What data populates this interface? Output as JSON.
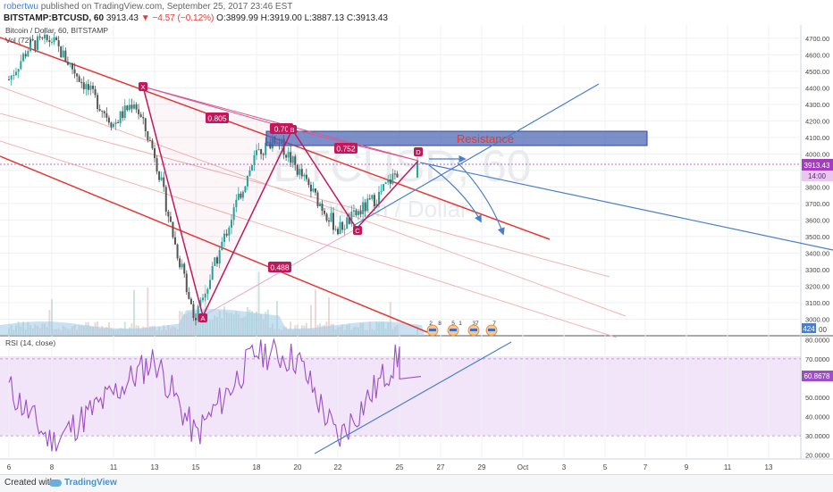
{
  "header": {
    "author": "robertwu",
    "published_text": "published on TradingView.com, September 25, 2017 23:46 EST",
    "symbol_line": "BITSTAMP:BTCUSD, 60",
    "last": "3913.43",
    "change": "▼ −4.57 (−0.12%)",
    "ohlc": "O:3899.99 H:3919.00 L:3887.13 C:3913.43"
  },
  "legend": {
    "main": "Bitcoin / Dollar, 60, BITSTAMP",
    "vol": "Vol (72)",
    "rsi": "RSI (14, close)"
  },
  "watermark": {
    "symbol": "BTCUSD, 60",
    "name": "Bitcoin / Dollar"
  },
  "price_axis": {
    "ticks": [
      "4700.00",
      "4600.00",
      "4500.00",
      "4400.00",
      "4300.00",
      "4200.00",
      "4100.00",
      "4000.00",
      "3900.00",
      "3800.00",
      "3700.00",
      "3600.00",
      "3500.00",
      "3400.00",
      "3300.00",
      "3200.00",
      "3100.00",
      "3000.00"
    ],
    "last_price_label": "3913.43",
    "countdown_label": "14:00",
    "volume_label": "424",
    "bottom_partial": "00"
  },
  "rsi_axis": {
    "ticks": [
      "80.0000",
      "70.0000",
      "50.0000",
      "40.0000",
      "30.0000",
      "20.0000"
    ],
    "current_label": "60.8678"
  },
  "time_axis": {
    "labels": [
      "6",
      "8",
      "11",
      "13",
      "15",
      "18",
      "20",
      "22",
      "25",
      "27",
      "29",
      "Oct",
      "3",
      "5",
      "7",
      "9",
      "11",
      "13"
    ]
  },
  "annotations": {
    "resistance": "Resistance",
    "pattern_points": [
      "X",
      "A",
      "B",
      "C",
      "D"
    ],
    "ratios": [
      "0.805",
      "0.70",
      "0.752",
      "0.488"
    ],
    "event_badges": [
      "2",
      "8",
      "5",
      "1",
      "37",
      "7"
    ]
  },
  "chart_data": {
    "type": "line",
    "xlabel": "",
    "ylabel": "",
    "x_ticks": [
      "6",
      "8",
      "11",
      "13",
      "15",
      "18",
      "20",
      "22",
      "25",
      "27",
      "29",
      "Oct",
      "3",
      "5",
      "7",
      "9",
      "11",
      "13"
    ],
    "ylim": [
      2900,
      4780
    ],
    "rsi_ylim": [
      18,
      82
    ],
    "series": [
      {
        "name": "BITSTAMP:BTCUSD, 60",
        "type": "candlestick",
        "key_points": [
          {
            "x": "6",
            "y": 4450
          },
          {
            "x": "7",
            "y": 4660
          },
          {
            "x": "8",
            "y": 4690
          },
          {
            "x": "11",
            "y": 4180
          },
          {
            "x": "12",
            "y": 4320
          },
          {
            "x": "13",
            "y": 4000
          },
          {
            "x": "14",
            "y": 3450
          },
          {
            "x": "15",
            "y": 3000
          },
          {
            "x": "17",
            "y": 3700
          },
          {
            "x": "18",
            "y": 4000
          },
          {
            "x": "19",
            "y": 4090
          },
          {
            "x": "21",
            "y": 3720
          },
          {
            "x": "22",
            "y": 3540
          },
          {
            "x": "24",
            "y": 3750
          },
          {
            "x": "25",
            "y": 3913.43
          }
        ]
      },
      {
        "name": "Vol (72)",
        "type": "volume"
      },
      {
        "name": "RSI (14, close)",
        "type": "oscillator",
        "key_points": [
          {
            "x": "6",
            "y": 55
          },
          {
            "x": "8",
            "y": 26
          },
          {
            "x": "11",
            "y": 52
          },
          {
            "x": "13",
            "y": 70
          },
          {
            "x": "15",
            "y": 30
          },
          {
            "x": "18",
            "y": 74
          },
          {
            "x": "20",
            "y": 70
          },
          {
            "x": "22",
            "y": 28
          },
          {
            "x": "25",
            "y": 72
          },
          {
            "x": "25",
            "y": 60.87
          }
        ]
      }
    ],
    "harmonic_pattern": {
      "X": {
        "x": "12",
        "y": 4340
      },
      "A": {
        "x": "15",
        "y": 3010
      },
      "B": {
        "x": "19",
        "y": 4090
      },
      "C": {
        "x": "22",
        "y": 3535
      },
      "D": {
        "x": "25",
        "y": 3935
      },
      "ratios": {
        "XB": "0.805",
        "AC": "0.70",
        "BD": "0.752",
        "XD": "0.488"
      }
    },
    "resistance_zone": {
      "label": "Resistance",
      "y_low": 4030,
      "y_high": 4110
    },
    "last_price": 3913.43,
    "rsi_current": 60.8678,
    "colors": {
      "up_candle": "#26a69a",
      "down_candle": "#555555",
      "channel": "#e53935",
      "trendline": "#3f7fd4",
      "pattern": "#c2185b",
      "resistance": "#4a64b4",
      "rsi_line": "#9c4fc4",
      "rsi_band": "#f3e5f9",
      "volume": "#9dc8e8"
    }
  }
}
